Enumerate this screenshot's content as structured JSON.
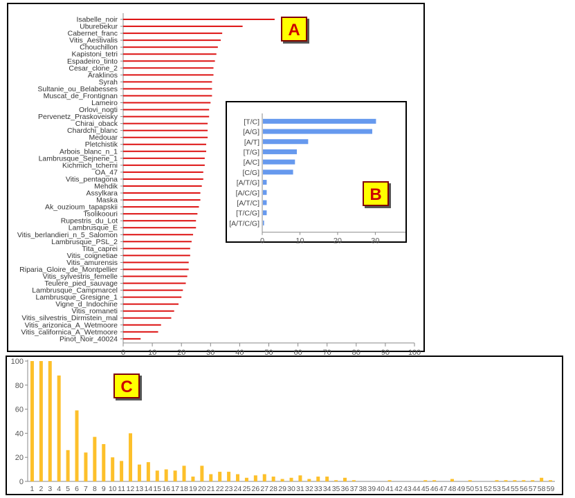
{
  "panels": {
    "a": {
      "label": "A"
    },
    "b": {
      "label": "B"
    },
    "c": {
      "label": "C"
    }
  },
  "colors": {
    "panel_a_bars": "#dd1111",
    "panel_b_bars": "#6699ee",
    "panel_c_bars": "#fdc02a",
    "badge_fill": "#ffff00",
    "badge_text": "#cc0000",
    "badge_border": "#800000"
  },
  "chart_data": [
    {
      "id": "A",
      "type": "bar",
      "orientation": "horizontal",
      "categories": [
        "Isabelle_noir",
        "Uburebekur",
        "Cabernet_franc",
        "Vitis_Aestivalis",
        "Chouchillon",
        "Kapistoni_tetri",
        "Espadeiro_tinto",
        "Cesar_clone_2",
        "Araklinos",
        "Syrah",
        "Sultanie_ou_Belabesses",
        "Muscat_de_Frontignan",
        "Lameiro",
        "Orlovi_nogti",
        "Pervenetz_Praskoveisky",
        "Chirai_oback",
        "Chardchi_blanc",
        "Medouar",
        "Pletchistik",
        "Arbois_blanc_n_1",
        "Lambrusque_Sejnene_1",
        "Kichmich_tcherni",
        "OA_47",
        "Vitis_pentagona",
        "Mehdik",
        "Assylkara",
        "Maska",
        "Ak_ouzioum_tapapskii",
        "Tsolikoouri",
        "Rupestris_du_Lot",
        "Lambrusque_E",
        "Vitis_berlandieri_n_5_Salomon",
        "Lambrusque_PSL_2",
        "Tita_caprei",
        "Vitis_coignetiae",
        "Vitis_amurensis",
        "Riparia_Gloire_de_Montpellier",
        "Vitis_sylvestris_femelle",
        "Teulere_pied_sauvage",
        "Lambrusque_Campmarcel",
        "Lambrusque_Gresigne_1",
        "Vigne_d_Indochine",
        "Vitis_romaneti",
        "Vitis_silvestris_Dirmstein_mal",
        "Vitis_arizonica_A_Wetmoore",
        "Vitis_californica_A_Wetmoore",
        "Pinot_Noir_40024"
      ],
      "values": [
        52,
        41,
        34,
        33.5,
        32.5,
        32,
        31.5,
        31,
        31,
        30.5,
        30.5,
        30.5,
        30,
        29.5,
        29.5,
        29,
        29,
        29,
        28.5,
        28.5,
        28,
        28,
        27.5,
        27.5,
        27,
        26.5,
        26.5,
        26,
        25.5,
        25,
        25,
        24,
        23.5,
        23,
        23,
        22.5,
        22.5,
        22,
        21.5,
        20.5,
        20,
        19,
        17.5,
        16.5,
        13,
        12,
        6
      ],
      "xlim": [
        0,
        100
      ],
      "xticks": [
        "0",
        "10",
        "20",
        "30",
        "40",
        "50",
        "60",
        "70",
        "80",
        "90",
        "100"
      ],
      "grid": false
    },
    {
      "id": "B",
      "type": "bar",
      "orientation": "horizontal",
      "categories": [
        "[T/C]",
        "[A/G]",
        "[A/T]",
        "[T/G]",
        "[A/C]",
        "[C/G]",
        "[A/T/G]",
        "[A/C/G]",
        "[A/T/C]",
        "[T/C/G]",
        "[A/T/C/G]"
      ],
      "values": [
        30,
        29,
        12,
        9,
        8.5,
        8,
        1,
        1,
        1,
        1,
        0.3
      ],
      "xlim": [
        0,
        38
      ],
      "xticks": [
        "0",
        "10",
        "20",
        "30"
      ],
      "grid": false
    },
    {
      "id": "C",
      "type": "bar",
      "orientation": "vertical",
      "categories": [
        "1",
        "2",
        "3",
        "4",
        "5",
        "6",
        "7",
        "8",
        "9",
        "10",
        "11",
        "12",
        "13",
        "14",
        "15",
        "16",
        "17",
        "18",
        "19",
        "20",
        "21",
        "22",
        "23",
        "24",
        "25",
        "26",
        "27",
        "28",
        "29",
        "30",
        "31",
        "32",
        "33",
        "34",
        "35",
        "36",
        "37",
        "38",
        "39",
        "40",
        "41",
        "42",
        "43",
        "44",
        "45",
        "46",
        "47",
        "48",
        "49",
        "50",
        "51",
        "52",
        "53",
        "54",
        "55",
        "56",
        "57",
        "58",
        "59"
      ],
      "values": [
        100,
        100,
        100,
        88,
        26,
        59,
        24,
        37,
        31,
        20,
        17,
        40,
        14,
        16,
        9,
        10,
        9,
        13,
        4,
        13,
        6,
        8,
        8,
        6,
        3,
        5,
        6,
        4,
        2,
        3,
        5,
        2,
        4,
        4,
        1,
        3,
        1,
        0,
        0,
        0,
        1,
        0,
        0,
        0,
        1,
        1,
        0,
        2,
        0,
        1,
        0,
        0,
        1,
        1,
        1,
        1,
        1,
        3,
        1
      ],
      "ylim": [
        0,
        100
      ],
      "yticks": [
        "0",
        "20",
        "40",
        "60",
        "80",
        "100"
      ],
      "grid": false
    }
  ]
}
